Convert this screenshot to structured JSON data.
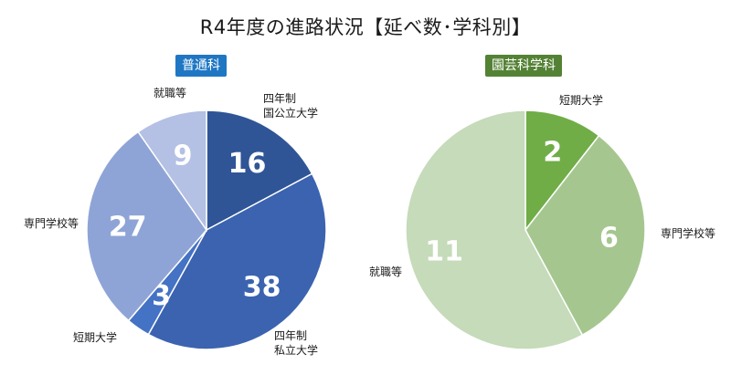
{
  "title": "R4年度の進路状況【延べ数･学科別】",
  "chart_data": [
    {
      "type": "pie",
      "title": "普通科",
      "title_bg": "#1f77c4",
      "slices": [
        {
          "label_lines": [
            "四年制",
            "国公立大学"
          ],
          "value": 16,
          "color": "#2f5597"
        },
        {
          "label_lines": [
            "四年制",
            "私立大学"
          ],
          "value": 38,
          "color": "#3b63b0"
        },
        {
          "label_lines": [
            "短期大学"
          ],
          "value": 3,
          "color": "#4472c4"
        },
        {
          "label_lines": [
            "専門学校等"
          ],
          "value": 27,
          "color": "#8fa4d6"
        },
        {
          "label_lines": [
            "就職等"
          ],
          "value": 9,
          "color": "#b4c0e4"
        }
      ]
    },
    {
      "type": "pie",
      "title": "園芸科学科",
      "title_bg": "#548235",
      "slices": [
        {
          "label_lines": [
            "短期大学"
          ],
          "value": 2,
          "color": "#70ad47"
        },
        {
          "label_lines": [
            "専門学校等"
          ],
          "value": 6,
          "color": "#a5c78f"
        },
        {
          "label_lines": [
            "就職等"
          ],
          "value": 11,
          "color": "#c5dbb9"
        }
      ]
    }
  ]
}
